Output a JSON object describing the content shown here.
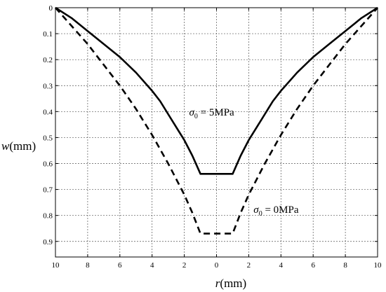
{
  "chart_data": {
    "type": "line",
    "title": "",
    "xlabel": "r(mm)",
    "ylabel": "w(mm)",
    "xlim": [
      -10,
      10
    ],
    "ylim": [
      0,
      0.96
    ],
    "y_inverted": true,
    "x_ticks": [
      -10,
      -8,
      -6,
      -4,
      -2,
      0,
      2,
      4,
      6,
      8,
      10
    ],
    "x_tick_labels": [
      "10",
      "8",
      "6",
      "4",
      "2",
      "0",
      "2",
      "4",
      "6",
      "8",
      "10"
    ],
    "y_ticks": [
      0,
      0.1,
      0.2,
      0.3,
      0.4,
      0.5,
      0.6,
      0.7,
      0.8,
      0.9
    ],
    "y_tick_labels": [
      "0",
      "0.1",
      "0.2",
      "0.3",
      "0.4",
      "0.5",
      "0.6",
      "0.7",
      "0.8",
      "0.9"
    ],
    "grid": true,
    "series": [
      {
        "style": "solid",
        "x": [
          -10,
          -9,
          -8,
          -7,
          -6,
          -5,
          -4,
          -3.5,
          -3,
          -2.5,
          -2,
          -1.5,
          -1,
          1,
          1.5,
          2,
          2.5,
          3,
          3.5,
          4,
          5,
          6,
          7,
          8,
          9,
          10
        ],
        "y": [
          0,
          0.04,
          0.09,
          0.14,
          0.19,
          0.25,
          0.32,
          0.36,
          0.41,
          0.46,
          0.51,
          0.57,
          0.64,
          0.64,
          0.57,
          0.51,
          0.46,
          0.41,
          0.36,
          0.32,
          0.25,
          0.19,
          0.14,
          0.09,
          0.04,
          0
        ]
      },
      {
        "style": "dashed",
        "x": [
          -10,
          -9,
          -8,
          -7,
          -6,
          -5,
          -4,
          -3,
          -2,
          -1.5,
          -1,
          1,
          1.5,
          2,
          3,
          4,
          5,
          6,
          7,
          8,
          9,
          10
        ],
        "y": [
          0,
          0.07,
          0.14,
          0.22,
          0.3,
          0.39,
          0.49,
          0.6,
          0.72,
          0.79,
          0.87,
          0.87,
          0.79,
          0.72,
          0.6,
          0.49,
          0.39,
          0.3,
          0.22,
          0.14,
          0.07,
          0
        ]
      }
    ],
    "annotations": [
      {
        "sigma": "σ",
        "sub": "0",
        "text": " = 5MPa",
        "anchor_x": -1.7,
        "anchor_y": 0.415
      },
      {
        "sigma": "σ",
        "sub": "0",
        "text": " = 0MPa",
        "anchor_x": 2.3,
        "anchor_y": 0.79
      }
    ]
  }
}
